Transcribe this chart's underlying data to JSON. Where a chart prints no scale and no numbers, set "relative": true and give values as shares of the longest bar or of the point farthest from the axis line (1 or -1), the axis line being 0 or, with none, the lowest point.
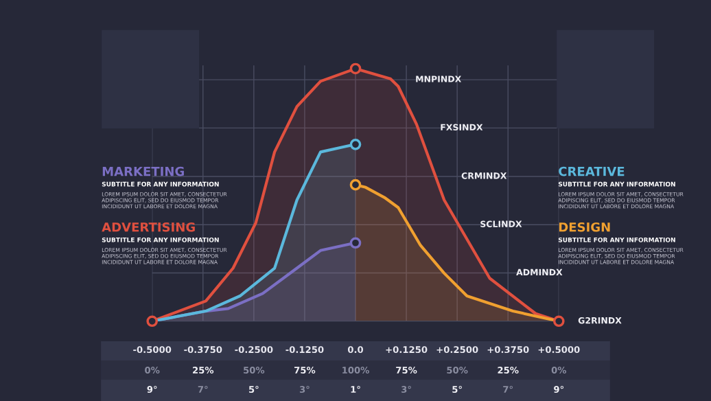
{
  "chart_data": {
    "type": "area",
    "xlim": [
      -0.5,
      0.5
    ],
    "xticks": [
      {
        "value": -0.5,
        "label": "-0.5000"
      },
      {
        "value": -0.375,
        "label": "-0.3750"
      },
      {
        "value": -0.25,
        "label": "-0.2500"
      },
      {
        "value": -0.125,
        "label": "-0.1250"
      },
      {
        "value": 0,
        "label": "0.0"
      },
      {
        "value": 0.125,
        "label": "+0.1250"
      },
      {
        "value": 0.25,
        "label": "+0.2500"
      },
      {
        "value": 0.375,
        "label": "+0.3750"
      },
      {
        "value": 0.5,
        "label": "+0.5000"
      }
    ],
    "relative": true,
    "ref_lines": [
      {
        "axis": "y",
        "value": 0.956,
        "label": "MNPINDX"
      },
      {
        "axis": "y",
        "value": 0.765,
        "label": "FXSINDX"
      },
      {
        "axis": "y",
        "value": 0.573,
        "label": "CRMINDX"
      },
      {
        "axis": "y",
        "value": 0.382,
        "label": "SCLINDX"
      },
      {
        "axis": "y",
        "value": 0.191,
        "label": "ADMINDX"
      },
      {
        "axis": "y",
        "value": 0,
        "label": "G2RINDX"
      }
    ],
    "grid": "x",
    "series": [
      {
        "name": "MARKETING",
        "color": "#7b6fc4",
        "x": [
          -0.5,
          -0.368,
          -0.313,
          -0.228,
          -0.144,
          -0.086,
          -0.03,
          0
        ],
        "values": [
          0,
          0.04,
          0.05,
          0.11,
          0.21,
          0.28,
          0.3,
          0.31
        ]
      },
      {
        "name": "ADVERTISING",
        "color": "#e0503f",
        "x": [
          -0.5,
          -0.368,
          -0.301,
          -0.245,
          -0.199,
          -0.144,
          -0.086,
          0,
          0.086,
          0.105,
          0.15,
          0.218,
          0.33,
          0.443,
          0.5
        ],
        "values": [
          0,
          0.08,
          0.21,
          0.39,
          0.67,
          0.85,
          0.95,
          1,
          0.96,
          0.93,
          0.78,
          0.48,
          0.17,
          0.03,
          0
        ]
      },
      {
        "name": "CREATIVE",
        "color": "#5bb8dc",
        "x": [
          -0.5,
          -0.368,
          -0.284,
          -0.199,
          -0.144,
          -0.086,
          -0.03,
          0
        ],
        "values": [
          0,
          0.04,
          0.1,
          0.21,
          0.48,
          0.67,
          0.69,
          0.7
        ]
      },
      {
        "name": "DESIGN",
        "color": "#f0a030",
        "x": [
          0,
          0.025,
          0.071,
          0.105,
          0.16,
          0.218,
          0.274,
          0.387,
          0.5
        ],
        "values": [
          0.54,
          0.53,
          0.49,
          0.45,
          0.3,
          0.19,
          0.1,
          0.04,
          0
        ]
      },
      {
        "type": "scatter",
        "x": [
          -0.5,
          0,
          0.5,
          0,
          0,
          0
        ],
        "values": [
          0,
          1,
          0,
          0.7,
          0.31,
          0.54
        ],
        "colors": [
          "#e0503f",
          "#e0503f",
          "#e0503f",
          "#5bb8dc",
          "#7b6fc4",
          "#f0a030"
        ]
      }
    ],
    "annotations": [
      "SUBTITLE FOR ANY INFORMATION",
      "LOREM IPSUM DOLOR SIT AMET, CONSECTETUR\nADIPISCING ELIT, SED DO EIUSMOD TEMPOR\nINCIDIDUNT UT LABORE ET DOLORE MAGNA",
      "SUBTITLE FOR ANY INFORMATION",
      "LOREM IPSUM DOLOR SIT AMET, CONSECTETUR\nADIPISCING ELIT, SED DO EIUSMOD TEMPOR\nINCIDIDUNT UT LABORE ET DOLORE MAGNA",
      "SUBTITLE FOR ANY INFORMATION",
      "LOREM IPSUM DOLOR SIT AMET, CONSECTETUR\nADIPISCING ELIT, SED DO EIUSMOD TEMPOR\nINCIDIDUNT UT LABORE ET DOLORE MAGNA",
      "SUBTITLE FOR ANY INFORMATION",
      "LOREM IPSUM DOLOR SIT AMET, CONSECTETUR\nADIPISCING ELIT, SED DO EIUSMOD TEMPOR\nINCIDIDUNT UT LABORE ET DOLORE MAGNA",
      "0%",
      "25%",
      "50%",
      "75%",
      "100%",
      "75%",
      "50%",
      "25%",
      "0%",
      "9°",
      "7°",
      "5°",
      "3°",
      "1°",
      "3°",
      "5°",
      "7°",
      "9°"
    ]
  }
}
